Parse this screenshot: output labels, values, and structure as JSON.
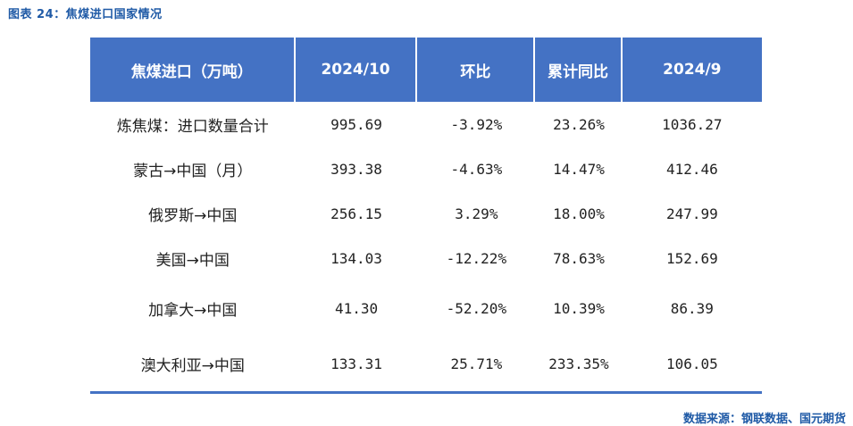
{
  "figure": {
    "title": "图表 24：焦煤进口国家情况"
  },
  "table": {
    "headers": [
      "焦煤进口（万吨）",
      "2024/10",
      "环比",
      "累计同比",
      "2024/9"
    ],
    "rows": [
      {
        "label": "炼焦煤：进口数量合计",
        "cells": [
          "995.69",
          "-3.92%",
          "23.26%",
          "1036.27"
        ]
      },
      {
        "label": "蒙古→中国（月）",
        "cells": [
          "393.38",
          "-4.63%",
          "14.47%",
          "412.46"
        ]
      },
      {
        "label": "俄罗斯→中国",
        "cells": [
          "256.15",
          "3.29%",
          "18.00%",
          "247.99"
        ]
      },
      {
        "label": "美国→中国",
        "cells": [
          "134.03",
          "-12.22%",
          "78.63%",
          "152.69"
        ]
      },
      {
        "label": "加拿大→中国",
        "cells": [
          "41.30",
          "-52.20%",
          "10.39%",
          "86.39"
        ]
      },
      {
        "label": "澳大利亚→中国",
        "cells": [
          "133.31",
          "25.71%",
          "233.35%",
          "106.05"
        ]
      }
    ]
  },
  "source": "数据来源：钢联数据、国元期货",
  "colors": {
    "header_bg": "#4472c4",
    "accent_text": "#1f5aa6"
  }
}
